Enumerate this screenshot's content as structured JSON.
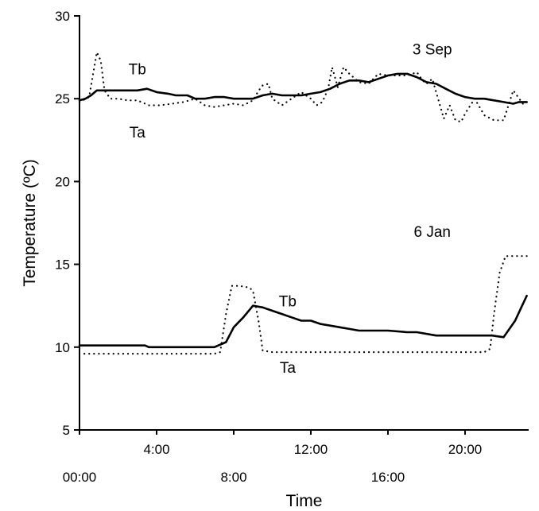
{
  "chart_data": {
    "type": "line",
    "title": "",
    "xlabel": "Time",
    "ylabel": "Temperature (ºC)",
    "ylim": [
      5,
      30
    ],
    "xlim_hours": [
      0,
      23.3
    ],
    "yticks": [
      5,
      10,
      15,
      20,
      25,
      30
    ],
    "xticks": [
      {
        "hour": 0,
        "label": "00:00",
        "row": "lower"
      },
      {
        "hour": 4,
        "label": "4:00",
        "row": "upper"
      },
      {
        "hour": 8,
        "label": "8:00",
        "row": "lower"
      },
      {
        "hour": 12,
        "label": "12:00",
        "row": "upper"
      },
      {
        "hour": 16,
        "label": "16:00",
        "row": "lower"
      },
      {
        "hour": 20,
        "label": "20:00",
        "row": "upper"
      }
    ],
    "grid": false,
    "legend": "none",
    "annotations": [
      {
        "text": "3 Sep",
        "hour": 18.3,
        "y": 28.0
      },
      {
        "text": "Tb",
        "hour": 3.0,
        "y": 26.8
      },
      {
        "text": "Ta",
        "hour": 3.0,
        "y": 23.0
      },
      {
        "text": "6 Jan",
        "hour": 18.3,
        "y": 17.0
      },
      {
        "text": "Tb",
        "hour": 10.8,
        "y": 12.8
      },
      {
        "text": "Ta",
        "hour": 10.8,
        "y": 8.8
      }
    ],
    "series": [
      {
        "name": "Tb",
        "style": "solid",
        "x": [
          0,
          0.3,
          0.6,
          0.9,
          1.2,
          1.5,
          2.2,
          3.0,
          3.5,
          4.0,
          4.6,
          5.0,
          5.6,
          6.0,
          6.5,
          7.0,
          7.5,
          8.0,
          8.5,
          9.0,
          9.5,
          10.0,
          10.5,
          11.0,
          11.5,
          12.0,
          12.5,
          13.0,
          13.5,
          14.0,
          14.5,
          15.0,
          15.5,
          16.0,
          16.5,
          17.0,
          17.5,
          18.0,
          18.5,
          19.0,
          19.5,
          20.0,
          20.5,
          21.0,
          21.5,
          22.0,
          22.5,
          22.8,
          23.2
        ],
        "y": [
          24.9,
          25.0,
          25.2,
          25.5,
          25.5,
          25.5,
          25.5,
          25.5,
          25.6,
          25.4,
          25.3,
          25.2,
          25.2,
          25.0,
          25.0,
          25.1,
          25.1,
          25.0,
          25.0,
          25.0,
          25.2,
          25.3,
          25.2,
          25.2,
          25.2,
          25.3,
          25.4,
          25.6,
          25.9,
          26.1,
          26.1,
          26.0,
          26.2,
          26.4,
          26.5,
          26.5,
          26.3,
          26.0,
          25.9,
          25.6,
          25.3,
          25.1,
          25.0,
          25.0,
          24.9,
          24.8,
          24.7,
          24.8,
          24.8
        ]
      },
      {
        "name": "Ta",
        "style": "dotted",
        "x": [
          0,
          0.5,
          0.9,
          1.1,
          1.3,
          1.6,
          2.0,
          2.5,
          3.0,
          3.6,
          4.2,
          4.8,
          5.4,
          6.0,
          6.5,
          7.0,
          7.5,
          8.0,
          8.5,
          9.0,
          9.3,
          9.5,
          9.8,
          10.0,
          10.5,
          11.0,
          11.5,
          12.0,
          12.3,
          12.6,
          12.9,
          13.1,
          13.4,
          13.7,
          14.0,
          14.5,
          15.0,
          15.5,
          16.0,
          16.5,
          17.0,
          17.5,
          17.8,
          18.0,
          18.3,
          18.6,
          18.9,
          19.2,
          19.5,
          19.8,
          20.0,
          20.5,
          21.0,
          21.5,
          22.0,
          22.5,
          23.0,
          23.2
        ],
        "y": [
          24.8,
          25.1,
          27.8,
          27.3,
          25.5,
          25.0,
          25.0,
          24.9,
          24.9,
          24.6,
          24.6,
          24.7,
          24.8,
          25.0,
          24.6,
          24.5,
          24.6,
          24.7,
          24.6,
          24.9,
          25.5,
          25.8,
          25.9,
          25.0,
          24.6,
          25.0,
          25.4,
          25.0,
          24.6,
          24.8,
          25.6,
          26.9,
          25.7,
          26.9,
          26.5,
          26.0,
          25.9,
          26.5,
          26.4,
          26.4,
          26.4,
          26.6,
          26.1,
          25.9,
          26.2,
          25.0,
          23.8,
          24.6,
          23.7,
          23.6,
          24.1,
          25.0,
          24.0,
          23.7,
          23.7,
          25.5,
          24.7,
          24.7
        ]
      },
      {
        "name": "Tb",
        "style": "solid",
        "x": [
          0,
          1.0,
          2.0,
          3.0,
          3.4,
          3.6,
          4.5,
          5.5,
          6.5,
          7.0,
          7.6,
          8.0,
          8.5,
          9.0,
          9.5,
          10.0,
          10.5,
          11.0,
          11.5,
          12.0,
          12.5,
          13.0,
          13.5,
          14.0,
          14.5,
          15.0,
          16.0,
          17.0,
          17.5,
          18.5,
          19.5,
          20.5,
          21.0,
          21.4,
          22.0,
          22.6,
          23.0,
          23.2
        ],
        "y": [
          10.1,
          10.1,
          10.1,
          10.1,
          10.1,
          10.0,
          10.0,
          10.0,
          10.0,
          10.0,
          10.3,
          11.2,
          11.8,
          12.5,
          12.4,
          12.2,
          12.0,
          11.8,
          11.6,
          11.6,
          11.4,
          11.3,
          11.2,
          11.1,
          11.0,
          11.0,
          11.0,
          10.9,
          10.9,
          10.7,
          10.7,
          10.7,
          10.7,
          10.7,
          10.6,
          11.6,
          12.6,
          13.1
        ]
      },
      {
        "name": "Ta",
        "style": "dotted",
        "x": [
          0,
          1.0,
          2.0,
          3.0,
          4.0,
          5.0,
          6.0,
          7.0,
          7.3,
          7.6,
          7.9,
          8.3,
          8.8,
          9.0,
          9.3,
          9.5,
          10.0,
          11.0,
          12.0,
          13.0,
          14.0,
          15.0,
          16.0,
          17.0,
          18.0,
          19.0,
          20.0,
          21.0,
          21.3,
          21.5,
          21.8,
          22.1,
          22.5,
          23.0,
          23.2
        ],
        "y": [
          9.6,
          9.6,
          9.6,
          9.6,
          9.6,
          9.6,
          9.6,
          9.6,
          9.7,
          12.0,
          13.7,
          13.7,
          13.6,
          13.4,
          11.5,
          9.8,
          9.7,
          9.7,
          9.7,
          9.7,
          9.7,
          9.7,
          9.7,
          9.7,
          9.7,
          9.7,
          9.7,
          9.7,
          9.9,
          12.0,
          14.5,
          15.5,
          15.5,
          15.5,
          15.5
        ]
      }
    ]
  }
}
